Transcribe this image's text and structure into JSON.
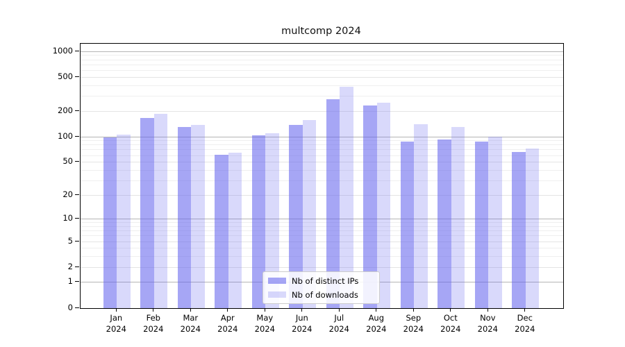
{
  "title": "multcomp 2024",
  "colors": {
    "bar_base": "#6666ee",
    "ips_alpha": 0.58,
    "downloads_alpha": 0.25,
    "grid_decade": "#b4b4b4",
    "grid_major": "#e4e4e4",
    "grid_minor": "#efefef",
    "spine": "#000000",
    "text": "#000000",
    "legend_border": "#cccccc",
    "legend_bg": "#ffffff"
  },
  "chart_data": {
    "type": "bar",
    "title": "multcomp 2024",
    "categories": [
      "Jan",
      "Feb",
      "Mar",
      "Apr",
      "May",
      "Jun",
      "Jul",
      "Aug",
      "Sep",
      "Oct",
      "Nov",
      "Dec"
    ],
    "category_year": "2024",
    "series": [
      {
        "name": "Nb of distinct IPs",
        "values": [
          98,
          165,
          130,
          61,
          103,
          137,
          277,
          235,
          87,
          93,
          88,
          66
        ]
      },
      {
        "name": "Nb of downloads",
        "values": [
          105,
          185,
          138,
          65,
          110,
          157,
          385,
          250,
          140,
          131,
          100,
          72
        ]
      }
    ],
    "xlabel": "",
    "ylabel": "",
    "yscale": "log1p",
    "yticks": [
      0,
      1,
      2,
      5,
      10,
      20,
      50,
      100,
      200,
      500,
      1000
    ],
    "ylim": [
      0,
      1236
    ],
    "grid": true,
    "legend_position": "lower center"
  }
}
